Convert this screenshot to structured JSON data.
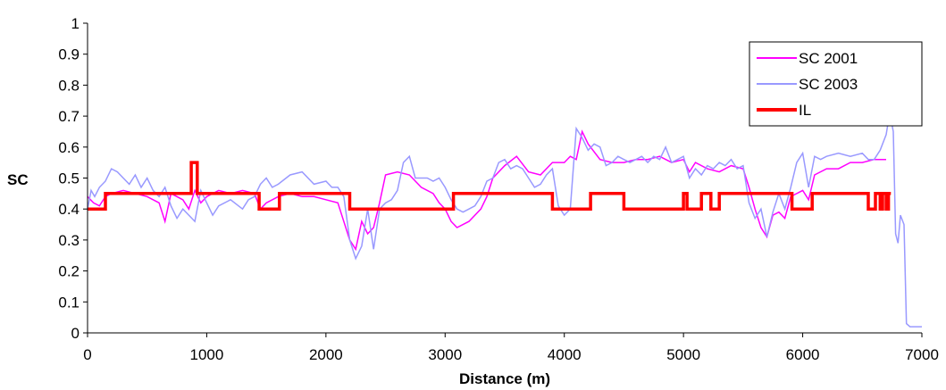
{
  "chart_data": {
    "type": "line",
    "title": "",
    "xlabel": "Distance (m)",
    "ylabel": "SC",
    "xlim": [
      0,
      7000
    ],
    "ylim": [
      0,
      1
    ],
    "xticks": [
      0,
      1000,
      2000,
      3000,
      4000,
      5000,
      6000,
      7000
    ],
    "yticks": [
      0,
      0.1,
      0.2,
      0.3,
      0.4,
      0.5,
      0.6,
      0.7,
      0.8,
      0.9,
      1
    ],
    "grid": false,
    "legend_position": "top-right",
    "series": [
      {
        "name": "SC 2001",
        "color": "#ff00ff",
        "points": [
          [
            0,
            0.44
          ],
          [
            50,
            0.42
          ],
          [
            100,
            0.41
          ],
          [
            150,
            0.44
          ],
          [
            200,
            0.45
          ],
          [
            300,
            0.46
          ],
          [
            400,
            0.45
          ],
          [
            500,
            0.44
          ],
          [
            600,
            0.42
          ],
          [
            650,
            0.36
          ],
          [
            700,
            0.45
          ],
          [
            800,
            0.43
          ],
          [
            850,
            0.4
          ],
          [
            900,
            0.46
          ],
          [
            950,
            0.42
          ],
          [
            1000,
            0.44
          ],
          [
            1100,
            0.46
          ],
          [
            1200,
            0.45
          ],
          [
            1300,
            0.46
          ],
          [
            1400,
            0.45
          ],
          [
            1450,
            0.4
          ],
          [
            1500,
            0.42
          ],
          [
            1600,
            0.44
          ],
          [
            1700,
            0.45
          ],
          [
            1800,
            0.44
          ],
          [
            1900,
            0.44
          ],
          [
            2000,
            0.43
          ],
          [
            2100,
            0.42
          ],
          [
            2200,
            0.3
          ],
          [
            2250,
            0.27
          ],
          [
            2300,
            0.36
          ],
          [
            2350,
            0.32
          ],
          [
            2400,
            0.34
          ],
          [
            2450,
            0.42
          ],
          [
            2500,
            0.51
          ],
          [
            2600,
            0.52
          ],
          [
            2700,
            0.51
          ],
          [
            2800,
            0.47
          ],
          [
            2900,
            0.45
          ],
          [
            2950,
            0.42
          ],
          [
            3000,
            0.4
          ],
          [
            3050,
            0.36
          ],
          [
            3100,
            0.34
          ],
          [
            3200,
            0.36
          ],
          [
            3300,
            0.4
          ],
          [
            3350,
            0.44
          ],
          [
            3400,
            0.5
          ],
          [
            3500,
            0.54
          ],
          [
            3600,
            0.57
          ],
          [
            3700,
            0.52
          ],
          [
            3800,
            0.51
          ],
          [
            3900,
            0.55
          ],
          [
            4000,
            0.55
          ],
          [
            4050,
            0.57
          ],
          [
            4100,
            0.56
          ],
          [
            4150,
            0.65
          ],
          [
            4200,
            0.61
          ],
          [
            4300,
            0.56
          ],
          [
            4400,
            0.55
          ],
          [
            4500,
            0.55
          ],
          [
            4600,
            0.56
          ],
          [
            4700,
            0.56
          ],
          [
            4800,
            0.57
          ],
          [
            4900,
            0.55
          ],
          [
            5000,
            0.56
          ],
          [
            5050,
            0.52
          ],
          [
            5100,
            0.55
          ],
          [
            5200,
            0.53
          ],
          [
            5300,
            0.52
          ],
          [
            5400,
            0.54
          ],
          [
            5500,
            0.53
          ],
          [
            5550,
            0.47
          ],
          [
            5600,
            0.4
          ],
          [
            5650,
            0.34
          ],
          [
            5700,
            0.31
          ],
          [
            5750,
            0.38
          ],
          [
            5800,
            0.39
          ],
          [
            5850,
            0.37
          ],
          [
            5900,
            0.44
          ],
          [
            6000,
            0.46
          ],
          [
            6050,
            0.43
          ],
          [
            6100,
            0.51
          ],
          [
            6200,
            0.53
          ],
          [
            6300,
            0.53
          ],
          [
            6400,
            0.55
          ],
          [
            6500,
            0.55
          ],
          [
            6600,
            0.56
          ],
          [
            6650,
            0.56
          ],
          [
            6700,
            0.56
          ]
        ]
      },
      {
        "name": "SC 2003",
        "color": "#9999ff",
        "points": [
          [
            0,
            0.4
          ],
          [
            30,
            0.46
          ],
          [
            60,
            0.44
          ],
          [
            100,
            0.47
          ],
          [
            150,
            0.49
          ],
          [
            200,
            0.53
          ],
          [
            250,
            0.52
          ],
          [
            300,
            0.5
          ],
          [
            350,
            0.48
          ],
          [
            400,
            0.51
          ],
          [
            450,
            0.47
          ],
          [
            500,
            0.5
          ],
          [
            550,
            0.46
          ],
          [
            600,
            0.44
          ],
          [
            650,
            0.47
          ],
          [
            700,
            0.41
          ],
          [
            750,
            0.37
          ],
          [
            800,
            0.4
          ],
          [
            850,
            0.38
          ],
          [
            900,
            0.36
          ],
          [
            950,
            0.46
          ],
          [
            1000,
            0.42
          ],
          [
            1050,
            0.38
          ],
          [
            1100,
            0.41
          ],
          [
            1200,
            0.43
          ],
          [
            1300,
            0.4
          ],
          [
            1350,
            0.43
          ],
          [
            1400,
            0.44
          ],
          [
            1450,
            0.48
          ],
          [
            1500,
            0.5
          ],
          [
            1550,
            0.47
          ],
          [
            1600,
            0.48
          ],
          [
            1700,
            0.51
          ],
          [
            1800,
            0.52
          ],
          [
            1900,
            0.48
          ],
          [
            2000,
            0.49
          ],
          [
            2050,
            0.47
          ],
          [
            2100,
            0.47
          ],
          [
            2150,
            0.44
          ],
          [
            2200,
            0.3
          ],
          [
            2250,
            0.24
          ],
          [
            2300,
            0.28
          ],
          [
            2350,
            0.4
          ],
          [
            2400,
            0.27
          ],
          [
            2450,
            0.4
          ],
          [
            2500,
            0.42
          ],
          [
            2550,
            0.43
          ],
          [
            2600,
            0.46
          ],
          [
            2650,
            0.55
          ],
          [
            2700,
            0.57
          ],
          [
            2750,
            0.5
          ],
          [
            2800,
            0.5
          ],
          [
            2850,
            0.5
          ],
          [
            2900,
            0.49
          ],
          [
            2950,
            0.5
          ],
          [
            3000,
            0.47
          ],
          [
            3050,
            0.43
          ],
          [
            3100,
            0.4
          ],
          [
            3150,
            0.39
          ],
          [
            3200,
            0.4
          ],
          [
            3250,
            0.41
          ],
          [
            3300,
            0.44
          ],
          [
            3350,
            0.49
          ],
          [
            3400,
            0.5
          ],
          [
            3450,
            0.55
          ],
          [
            3500,
            0.56
          ],
          [
            3550,
            0.53
          ],
          [
            3600,
            0.54
          ],
          [
            3650,
            0.53
          ],
          [
            3700,
            0.5
          ],
          [
            3750,
            0.47
          ],
          [
            3800,
            0.48
          ],
          [
            3850,
            0.51
          ],
          [
            3900,
            0.53
          ],
          [
            3950,
            0.41
          ],
          [
            4000,
            0.38
          ],
          [
            4050,
            0.4
          ],
          [
            4100,
            0.66
          ],
          [
            4150,
            0.63
          ],
          [
            4200,
            0.59
          ],
          [
            4250,
            0.61
          ],
          [
            4300,
            0.6
          ],
          [
            4350,
            0.54
          ],
          [
            4400,
            0.55
          ],
          [
            4450,
            0.57
          ],
          [
            4500,
            0.56
          ],
          [
            4550,
            0.55
          ],
          [
            4600,
            0.56
          ],
          [
            4650,
            0.57
          ],
          [
            4700,
            0.55
          ],
          [
            4750,
            0.57
          ],
          [
            4800,
            0.56
          ],
          [
            4850,
            0.6
          ],
          [
            4900,
            0.55
          ],
          [
            4950,
            0.56
          ],
          [
            5000,
            0.57
          ],
          [
            5050,
            0.5
          ],
          [
            5100,
            0.53
          ],
          [
            5150,
            0.51
          ],
          [
            5200,
            0.54
          ],
          [
            5250,
            0.53
          ],
          [
            5300,
            0.55
          ],
          [
            5350,
            0.54
          ],
          [
            5400,
            0.56
          ],
          [
            5450,
            0.53
          ],
          [
            5500,
            0.54
          ],
          [
            5550,
            0.42
          ],
          [
            5600,
            0.37
          ],
          [
            5650,
            0.4
          ],
          [
            5700,
            0.31
          ],
          [
            5750,
            0.39
          ],
          [
            5800,
            0.45
          ],
          [
            5850,
            0.4
          ],
          [
            5900,
            0.47
          ],
          [
            5950,
            0.55
          ],
          [
            6000,
            0.58
          ],
          [
            6050,
            0.47
          ],
          [
            6100,
            0.57
          ],
          [
            6150,
            0.56
          ],
          [
            6200,
            0.57
          ],
          [
            6300,
            0.58
          ],
          [
            6400,
            0.57
          ],
          [
            6500,
            0.58
          ],
          [
            6550,
            0.56
          ],
          [
            6600,
            0.56
          ],
          [
            6650,
            0.59
          ],
          [
            6700,
            0.64
          ],
          [
            6730,
            0.71
          ],
          [
            6760,
            0.65
          ],
          [
            6780,
            0.32
          ],
          [
            6800,
            0.29
          ],
          [
            6820,
            0.38
          ],
          [
            6850,
            0.35
          ],
          [
            6870,
            0.03
          ],
          [
            6900,
            0.02
          ],
          [
            6950,
            0.02
          ],
          [
            7000,
            0.02
          ]
        ]
      },
      {
        "name": "IL",
        "color": "#ff0000",
        "points": [
          [
            0,
            0.4
          ],
          [
            150,
            0.4
          ],
          [
            150,
            0.45
          ],
          [
            870,
            0.45
          ],
          [
            870,
            0.55
          ],
          [
            920,
            0.55
          ],
          [
            920,
            0.45
          ],
          [
            1440,
            0.45
          ],
          [
            1440,
            0.4
          ],
          [
            1610,
            0.4
          ],
          [
            1610,
            0.45
          ],
          [
            2200,
            0.45
          ],
          [
            2200,
            0.4
          ],
          [
            3070,
            0.4
          ],
          [
            3070,
            0.45
          ],
          [
            3900,
            0.45
          ],
          [
            3900,
            0.4
          ],
          [
            4220,
            0.4
          ],
          [
            4220,
            0.45
          ],
          [
            4500,
            0.45
          ],
          [
            4500,
            0.4
          ],
          [
            5000,
            0.4
          ],
          [
            5000,
            0.45
          ],
          [
            5030,
            0.45
          ],
          [
            5030,
            0.4
          ],
          [
            5150,
            0.4
          ],
          [
            5150,
            0.45
          ],
          [
            5230,
            0.45
          ],
          [
            5230,
            0.4
          ],
          [
            5300,
            0.4
          ],
          [
            5300,
            0.45
          ],
          [
            5910,
            0.45
          ],
          [
            5910,
            0.4
          ],
          [
            6080,
            0.4
          ],
          [
            6080,
            0.45
          ],
          [
            6550,
            0.45
          ],
          [
            6550,
            0.4
          ],
          [
            6610,
            0.4
          ],
          [
            6610,
            0.45
          ],
          [
            6650,
            0.45
          ],
          [
            6650,
            0.4
          ],
          [
            6670,
            0.4
          ],
          [
            6670,
            0.45
          ],
          [
            6700,
            0.45
          ],
          [
            6700,
            0.4
          ],
          [
            6720,
            0.4
          ],
          [
            6720,
            0.45
          ],
          [
            6740,
            0.45
          ]
        ]
      }
    ]
  }
}
